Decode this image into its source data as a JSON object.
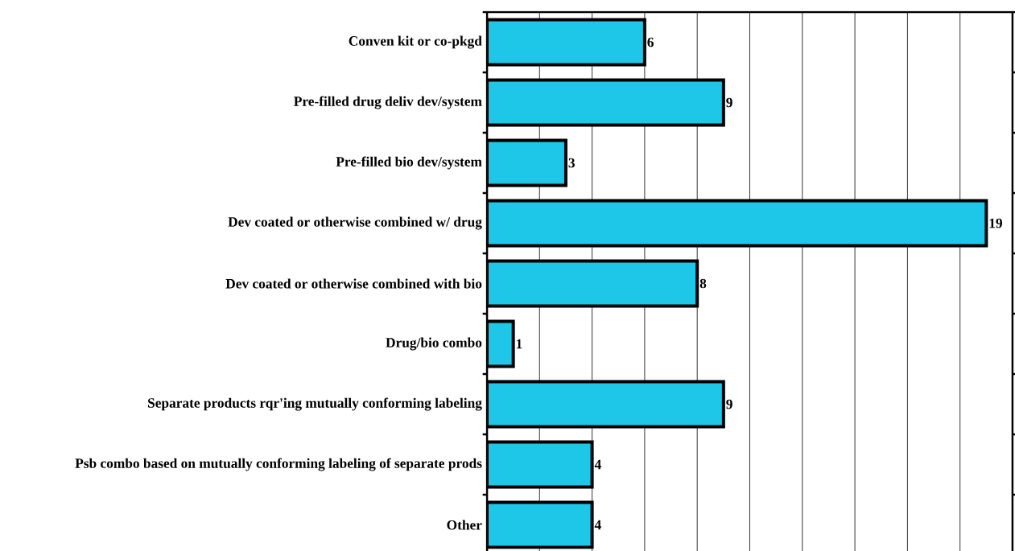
{
  "chart_data": {
    "type": "bar",
    "orientation": "horizontal",
    "categories": [
      "Conven kit or co-pkgd",
      "Pre-filled drug deliv dev/system",
      "Pre-filled bio dev/system",
      "Dev coated or otherwise combined w/ drug",
      "Dev coated or otherwise combined with bio",
      "Drug/bio combo",
      "Separate products rqr'ing mutually conforming labeling",
      "Psb combo based on mutually conforming labeling of separate prods",
      "Other"
    ],
    "values": [
      6,
      9,
      3,
      19,
      8,
      1,
      9,
      4,
      4
    ],
    "color": "#1ec6e8",
    "xlim": [
      0,
      20
    ],
    "xticks": [
      {
        "value": 0,
        "label": null
      },
      {
        "value": 2,
        "label": null
      },
      {
        "value": 4,
        "label": null
      },
      {
        "value": 6,
        "label": null
      },
      {
        "value": 8,
        "label": null
      },
      {
        "value": 10,
        "label": null
      },
      {
        "value": 12,
        "label": null
      },
      {
        "value": 14,
        "label": null
      },
      {
        "value": 16,
        "label": null
      },
      {
        "value": 18,
        "label": null
      },
      {
        "value": 20,
        "label": null
      }
    ],
    "tick_labels": "y",
    "grid": "x",
    "data_labels": true
  }
}
